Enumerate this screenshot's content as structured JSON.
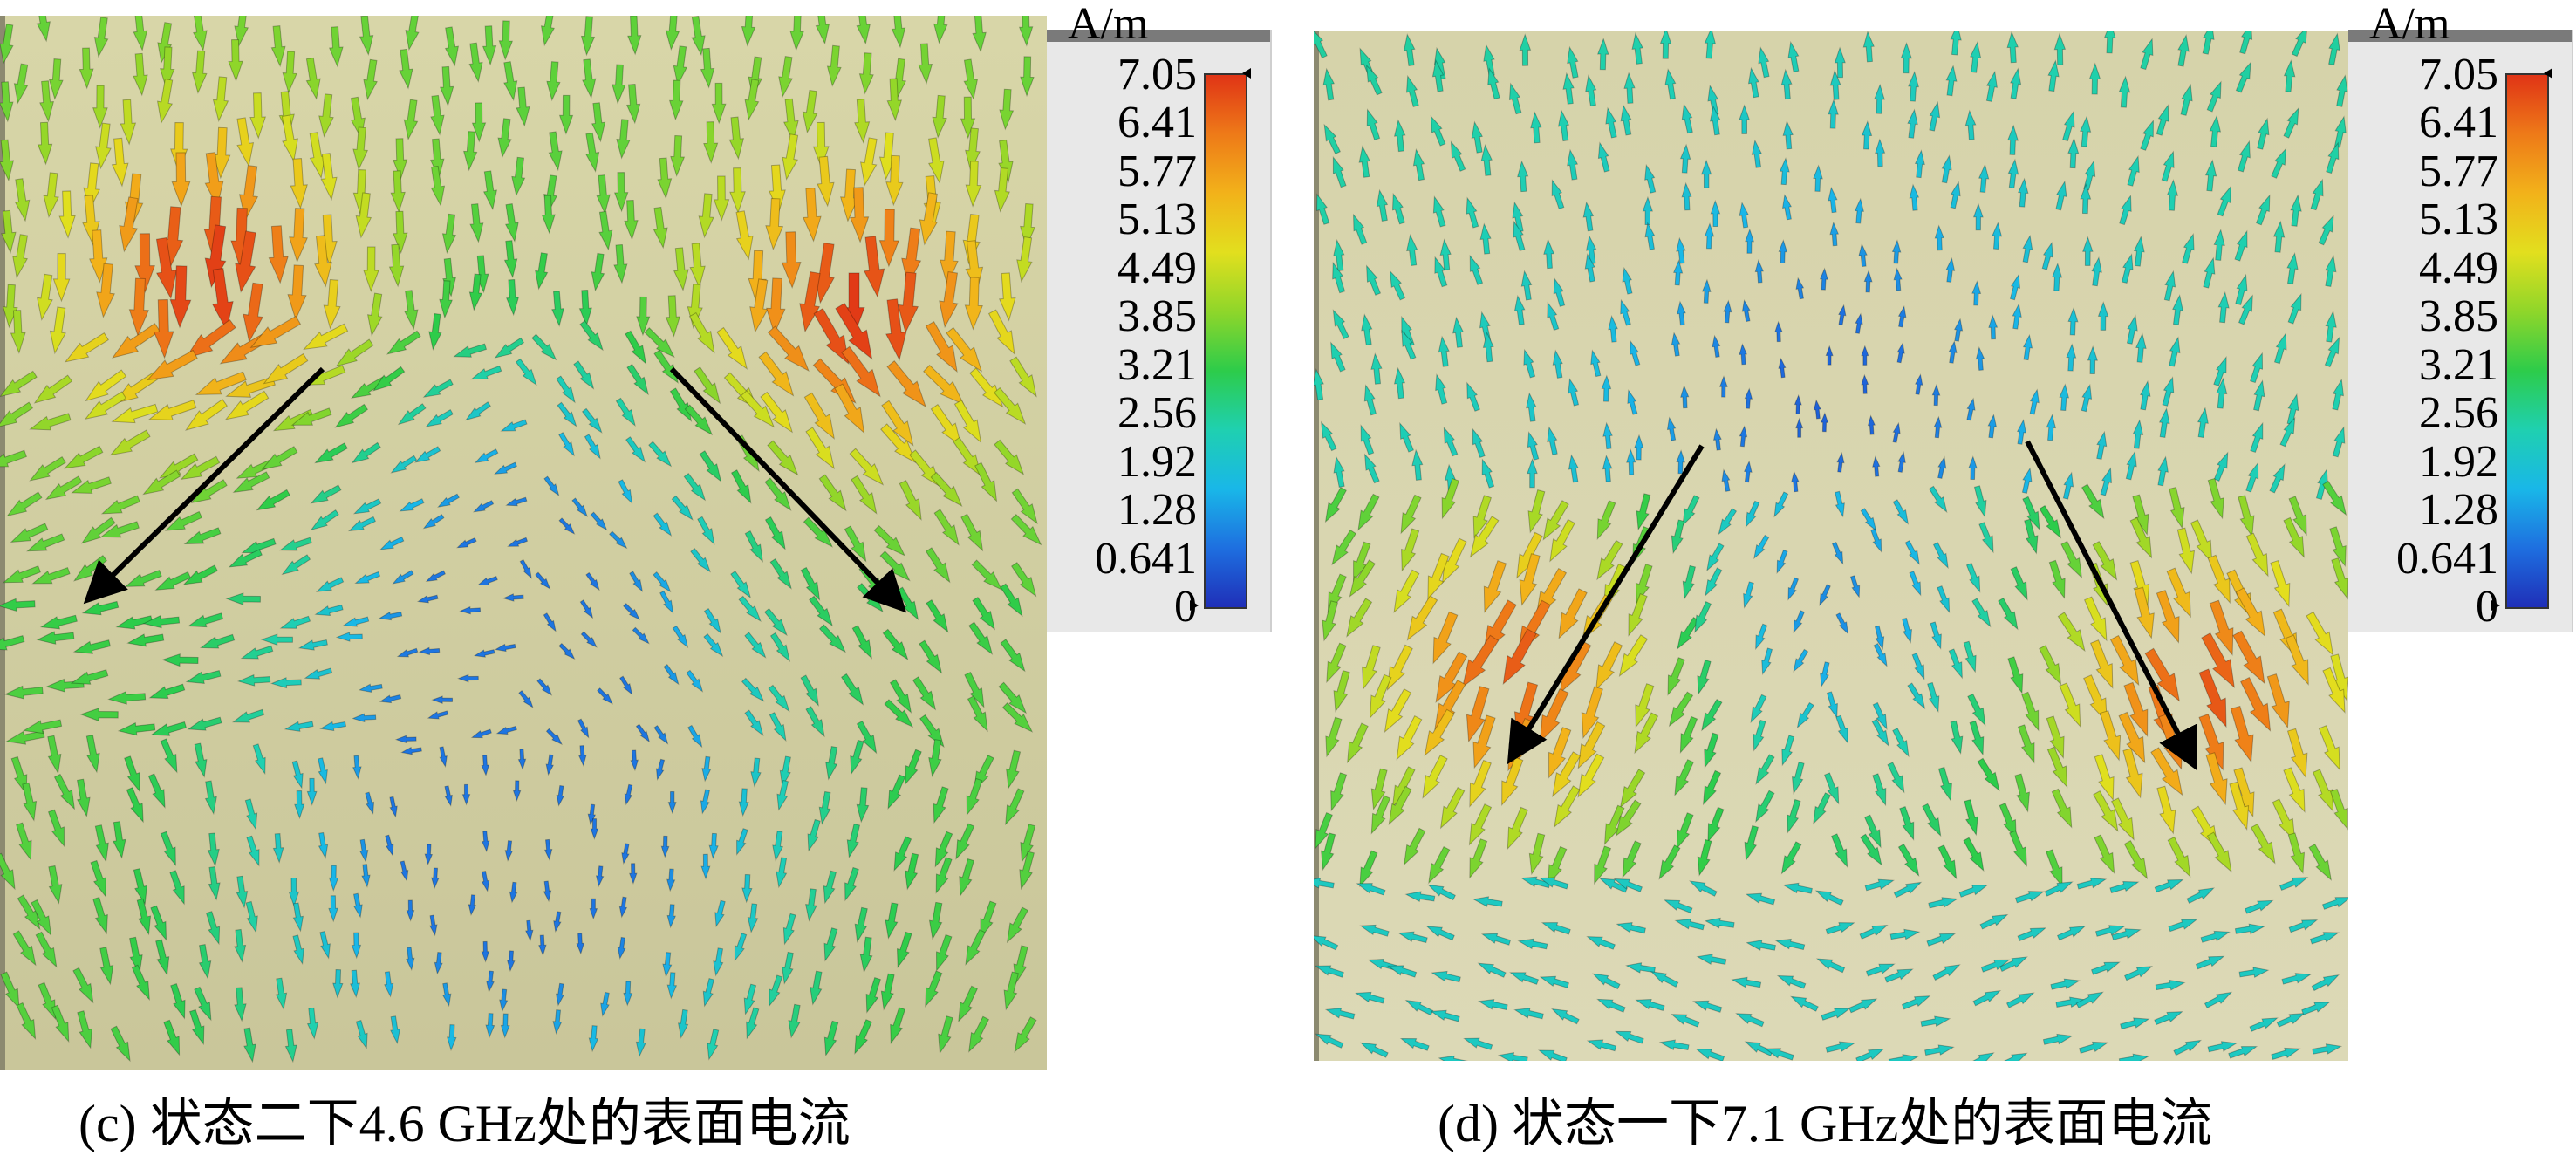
{
  "panels": [
    {
      "id": "c",
      "caption": "(c) 状态二下4.6 GHz处的表面电流",
      "legend": {
        "unit": "A/m",
        "ticks": [
          "7.05",
          "6.41",
          "5.77",
          "5.13",
          "4.49",
          "3.85",
          "3.21",
          "2.56",
          "1.92",
          "1.28",
          "0.641",
          "0"
        ]
      },
      "pattern": "state2"
    },
    {
      "id": "d",
      "caption": "(d) 状态一下7.1 GHz处的表面电流",
      "legend": {
        "unit": "A/m",
        "ticks": [
          "7.05",
          "6.41",
          "5.77",
          "5.13",
          "4.49",
          "3.85",
          "3.21",
          "2.56",
          "1.92",
          "1.28",
          "0.641",
          "0"
        ]
      },
      "pattern": "state1"
    }
  ],
  "colormap": [
    "#1f2fb8",
    "#1e6fe0",
    "#19b7e8",
    "#1fd0b0",
    "#2dcc4a",
    "#8fd62a",
    "#e2df1e",
    "#f2b21a",
    "#ee7a18",
    "#e03416"
  ],
  "colors": {
    "background_left": "#d8d6a8",
    "background_right": "#d6d3aa",
    "indicator_arrow": "#000000"
  }
}
